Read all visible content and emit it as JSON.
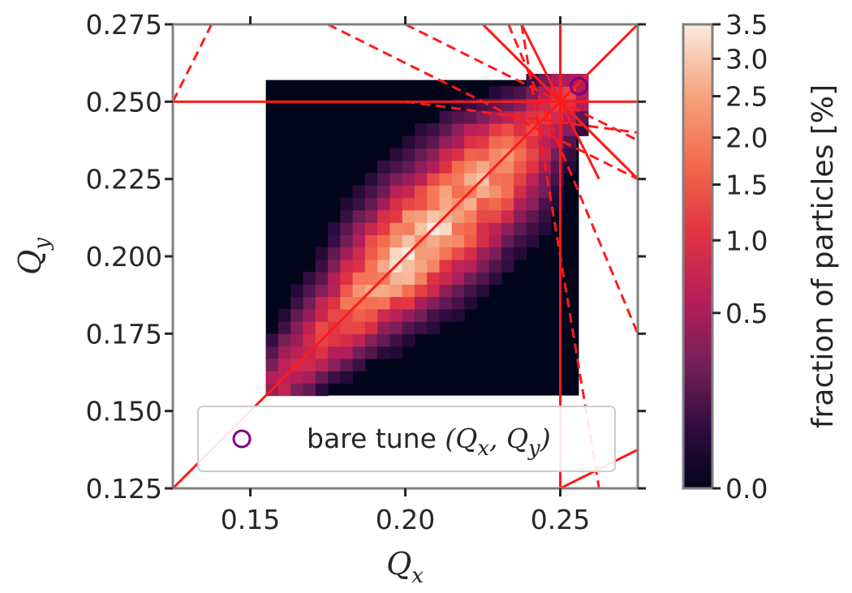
{
  "chart_data": {
    "type": "heatmap",
    "title": "",
    "xlabel": "Q",
    "xlabel_sub": "x",
    "ylabel": "Q",
    "ylabel_sub": "y",
    "xlim": [
      0.125,
      0.275
    ],
    "ylim": [
      0.125,
      0.275
    ],
    "x_ticks": [
      0.15,
      0.2,
      0.25
    ],
    "x_tick_labels": [
      "0.15",
      "0.20",
      "0.25"
    ],
    "y_ticks": [
      0.125,
      0.15,
      0.175,
      0.2,
      0.225,
      0.25,
      0.275
    ],
    "y_tick_labels": [
      "0.125",
      "0.150",
      "0.175",
      "0.200",
      "0.225",
      "0.250",
      "0.275"
    ],
    "grid": false,
    "heatmap": {
      "x_range": [
        0.155,
        0.256
      ],
      "y_range": [
        0.155,
        0.257
      ],
      "bin_width": 0.004,
      "ridge": [
        {
          "q": 0.16,
          "peak": 0.7,
          "width": 0.0045
        },
        {
          "q": 0.17,
          "peak": 1.0,
          "width": 0.0055
        },
        {
          "q": 0.18,
          "peak": 1.5,
          "width": 0.0065
        },
        {
          "q": 0.19,
          "peak": 2.3,
          "width": 0.0075
        },
        {
          "q": 0.2,
          "peak": 3.2,
          "width": 0.0085
        },
        {
          "q": 0.21,
          "peak": 3.0,
          "width": 0.009
        },
        {
          "q": 0.22,
          "peak": 2.4,
          "width": 0.009
        },
        {
          "q": 0.23,
          "peak": 2.6,
          "width": 0.0085
        },
        {
          "q": 0.24,
          "peak": 1.2,
          "width": 0.0065
        },
        {
          "q": 0.25,
          "peak": 0.8,
          "width": 0.005
        }
      ]
    },
    "bare_tune": {
      "qx": 0.256,
      "qy": 0.255
    },
    "legend": {
      "location": "lower-center",
      "label_text": "bare tune ",
      "label_math": "(Q",
      "label_sub1": "x",
      "label_mid": ", Q",
      "label_sub2": "y",
      "label_end": ")"
    },
    "colorbar": {
      "label": "fraction of particles [%]",
      "scale": "power",
      "gamma": 0.5,
      "vmin": 0.0,
      "vmax": 3.5,
      "ticks": [
        0.0,
        0.5,
        1.0,
        1.5,
        2.0,
        2.5,
        3.0,
        3.5
      ],
      "tick_labels": [
        "0.0",
        "0.5",
        "1.0",
        "1.5",
        "2.0",
        "2.5",
        "3.0",
        "3.5"
      ]
    },
    "resonance_lines": {
      "solid": [
        {
          "type": "h",
          "v": 0.25
        },
        {
          "type": "v",
          "v": 0.25
        },
        {
          "type": "diag",
          "p1": [
            0.125,
            0.125
          ],
          "p2": [
            0.275,
            0.275
          ]
        },
        {
          "type": "diag",
          "p1": [
            0.225,
            0.275
          ],
          "p2": [
            0.275,
            0.225
          ]
        },
        {
          "type": "diag",
          "p1": [
            0.2,
            0.3
          ],
          "p2": [
            0.3,
            0.2
          ]
        },
        {
          "type": "diag",
          "p1": [
            0.25,
            0.125
          ],
          "p2": [
            0.275,
            0.1375
          ]
        },
        {
          "type": "diag",
          "p1": [
            0.2375,
            0.275
          ],
          "p2": [
            0.2625,
            0.225
          ]
        }
      ],
      "dashed": [
        {
          "p1": [
            0.125,
            0.25
          ],
          "p2": [
            0.1375,
            0.275
          ]
        },
        {
          "p1": [
            0.175,
            0.275
          ],
          "p2": [
            0.275,
            0.225
          ]
        },
        {
          "p1": [
            0.2375,
            0.275
          ],
          "p2": [
            0.2625,
            0.125
          ]
        },
        {
          "p1": [
            0.2,
            0.275
          ],
          "p2": [
            0.275,
            0.2375
          ]
        },
        {
          "p1": [
            0.2333,
            0.275
          ],
          "p2": [
            0.275,
            0.175
          ]
        },
        {
          "p1": [
            0.2,
            0.25
          ],
          "p2": [
            0.275,
            0.24
          ]
        }
      ]
    },
    "colors": {
      "line": "#ff1a1a",
      "axis": "#808080",
      "background_bin": "#03051a",
      "marker": "#800080",
      "text": "#262626"
    }
  }
}
